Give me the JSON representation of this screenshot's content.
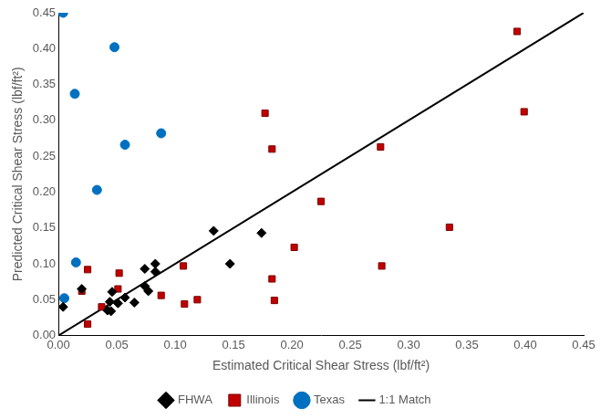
{
  "chart_data": {
    "type": "scatter",
    "x_label": "Estimated Critical Shear Stress (lbf/ft²)",
    "y_label": "Predicted Critical Shear Stress (lbf/ft²)",
    "xlim": [
      0,
      0.45
    ],
    "ylim": [
      0,
      0.45
    ],
    "xticks": [
      {
        "value": 0,
        "label": "0.00"
      },
      {
        "value": 0.05,
        "label": "0.05"
      },
      {
        "value": 0.1,
        "label": "0.10"
      },
      {
        "value": 0.15,
        "label": "0.15"
      },
      {
        "value": 0.2,
        "label": "0.20"
      },
      {
        "value": 0.25,
        "label": "0.25"
      },
      {
        "value": 0.3,
        "label": "0.30"
      },
      {
        "value": 0.35,
        "label": "0.35"
      },
      {
        "value": 0.4,
        "label": "0.40"
      },
      {
        "value": 0.45,
        "label": "0.45"
      }
    ],
    "yticks": [
      {
        "value": 0,
        "label": "0.00"
      },
      {
        "value": 0.05,
        "label": "0.05"
      },
      {
        "value": 0.1,
        "label": "0.10"
      },
      {
        "value": 0.15,
        "label": "0.15"
      },
      {
        "value": 0.2,
        "label": "0.20"
      },
      {
        "value": 0.25,
        "label": "0.25"
      },
      {
        "value": 0.3,
        "label": "0.30"
      },
      {
        "value": 0.35,
        "label": "0.35"
      },
      {
        "value": 0.4,
        "label": "0.40"
      },
      {
        "value": 0.45,
        "label": "0.45"
      }
    ],
    "grid": false,
    "legend": "bottom",
    "series": [
      {
        "name": "FHWA",
        "color": "#000000",
        "marker": "diamond",
        "x": [
          0.004,
          0.02,
          0.042,
          0.045,
          0.044,
          0.046,
          0.051,
          0.057,
          0.065,
          0.074,
          0.074,
          0.077,
          0.083,
          0.083,
          0.133,
          0.147,
          0.174
        ],
        "values": [
          0.04,
          0.065,
          0.035,
          0.034,
          0.047,
          0.061,
          0.045,
          0.053,
          0.046,
          0.093,
          0.069,
          0.062,
          0.1,
          0.089,
          0.146,
          0.1,
          0.143
        ]
      },
      {
        "name": "Illinois",
        "color": "#c00000",
        "marker": "square",
        "x": [
          0.02,
          0.025,
          0.025,
          0.037,
          0.052,
          0.051,
          0.088,
          0.107,
          0.108,
          0.119,
          0.177,
          0.183,
          0.183,
          0.185,
          0.225,
          0.202,
          0.276,
          0.277,
          0.335,
          0.393,
          0.399
        ],
        "values": [
          0.062,
          0.092,
          0.016,
          0.04,
          0.087,
          0.065,
          0.056,
          0.097,
          0.044,
          0.05,
          0.31,
          0.26,
          0.079,
          0.049,
          0.187,
          0.123,
          0.263,
          0.097,
          0.151,
          0.424,
          0.312
        ]
      },
      {
        "name": "Texas",
        "color": "#0070c0",
        "marker": "circle",
        "x": [
          0.004,
          0.048,
          0.014,
          0.088,
          0.057,
          0.033,
          0.015,
          0.005
        ],
        "values": [
          0.45,
          0.402,
          0.337,
          0.282,
          0.266,
          0.203,
          0.102,
          0.052
        ]
      },
      {
        "name": "1:1 Match",
        "color": "#000000",
        "type": "line",
        "line_style": "solid",
        "x": [
          0,
          0.45
        ],
        "values": [
          0,
          0.45
        ]
      }
    ]
  }
}
